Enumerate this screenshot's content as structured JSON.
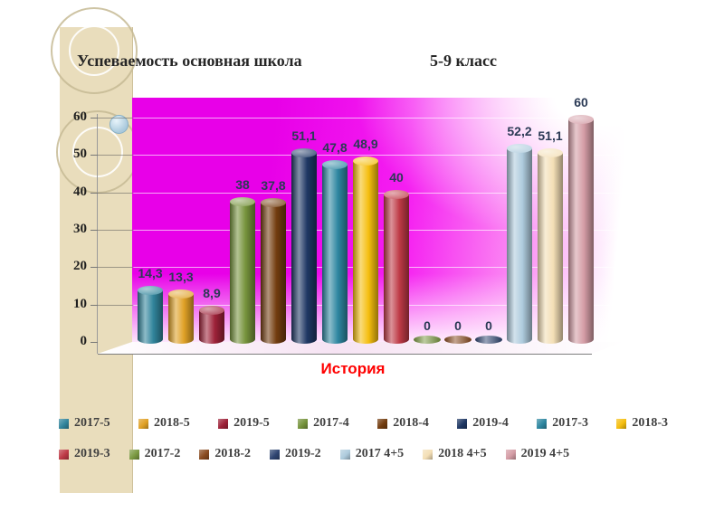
{
  "slide": {
    "title_left": "Успеваемость основная школа",
    "title_right": "5-9 класс"
  },
  "chart_data": {
    "type": "bar",
    "title": "Успеваемость основная школа 5-9 класс",
    "xlabel": "История",
    "ylabel": "",
    "ylim": [
      0,
      60
    ],
    "yticks": [
      0,
      10,
      20,
      30,
      40,
      50,
      60
    ],
    "grid": true,
    "legend_position": "bottom",
    "xlabel_color": "#FF0000",
    "value_label_color": "#2B3A55",
    "plot_background_colors": [
      "#E800E8",
      "#FFFFFF"
    ],
    "series": [
      {
        "name": "2017-5",
        "value": 14.3,
        "label": "14,3",
        "color": "#31859C"
      },
      {
        "name": "2018-5",
        "value": 13.3,
        "label": "13,3",
        "color": "#E0A126"
      },
      {
        "name": "2019-5",
        "value": 8.9,
        "label": "8,9",
        "color": "#9E2239"
      },
      {
        "name": "2017-4",
        "value": 38,
        "label": "38",
        "color": "#76933C"
      },
      {
        "name": "2018-4",
        "value": 37.8,
        "label": "37,8",
        "color": "#733D10"
      },
      {
        "name": "2019-4",
        "value": 51.1,
        "label": "51,1",
        "color": "#1F3864"
      },
      {
        "name": "2017-3",
        "value": 47.8,
        "label": "47,8",
        "color": "#2E87A1"
      },
      {
        "name": "2018-3",
        "value": 48.9,
        "label": "48,9",
        "color": "#F5BE0F"
      },
      {
        "name": "2019-3",
        "value": 40,
        "label": "40",
        "color": "#BE3A46"
      },
      {
        "name": "2017-2",
        "value": 0,
        "label": "0",
        "color": "#7B9A42"
      },
      {
        "name": "2018-2",
        "value": 0,
        "label": "0",
        "color": "#8A4B20"
      },
      {
        "name": "2019-2",
        "value": 0,
        "label": "0",
        "color": "#2F4571"
      },
      {
        "name": "2017 4+5",
        "value": 52.2,
        "label": "52,2",
        "color": "#AECBDD"
      },
      {
        "name": "2018 4+5",
        "value": 51.1,
        "label": "51,1",
        "color": "#F4DFB6"
      },
      {
        "name": "2019 4+5",
        "value": 60,
        "label": "60",
        "color": "#D49CA5"
      }
    ],
    "legend_rows": [
      [
        "2017-5",
        "2018-5",
        "2019-5",
        "2017-4",
        "2018-4",
        "2019-4",
        "2017-3",
        "2018-3"
      ],
      [
        "2019-3",
        "2017-2",
        "2018-2",
        "2019-2",
        "2017 4+5",
        "2018 4+5",
        "2019 4+5"
      ]
    ]
  }
}
